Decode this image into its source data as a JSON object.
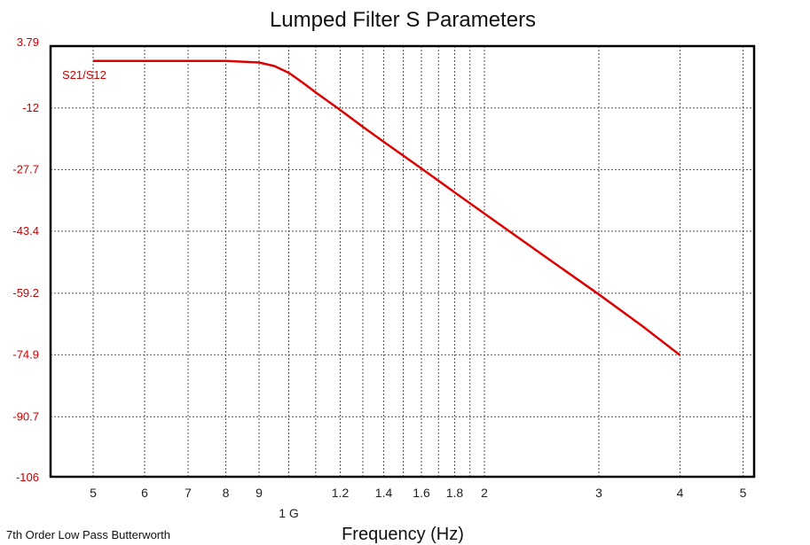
{
  "chart_data": {
    "type": "line",
    "title": "Lumped Filter S Parameters",
    "xlabel": "Frequency (Hz)",
    "ylabel": "",
    "x_scale": "log",
    "xlim": [
      430000000.0,
      5200000000.0
    ],
    "ylim": [
      -106,
      3.79
    ],
    "grid": true,
    "y_ticks": [
      {
        "value": 3.79,
        "label": "3.79"
      },
      {
        "value": -12,
        "label": "-12"
      },
      {
        "value": -27.7,
        "label": "-27.7"
      },
      {
        "value": -43.4,
        "label": "-43.4"
      },
      {
        "value": -59.2,
        "label": "-59.2"
      },
      {
        "value": -74.9,
        "label": "-74.9"
      },
      {
        "value": -90.7,
        "label": "-90.7"
      },
      {
        "value": -106,
        "label": "-106"
      }
    ],
    "x_ticks": [
      {
        "value": 500000000.0,
        "label": "5"
      },
      {
        "value": 600000000.0,
        "label": "6"
      },
      {
        "value": 700000000.0,
        "label": "7"
      },
      {
        "value": 800000000.0,
        "label": "8"
      },
      {
        "value": 900000000.0,
        "label": "9"
      },
      {
        "value": 1200000000.0,
        "label": "1.2"
      },
      {
        "value": 1400000000.0,
        "label": "1.4"
      },
      {
        "value": 1600000000.0,
        "label": "1.6"
      },
      {
        "value": 1800000000.0,
        "label": "1.8"
      },
      {
        "value": 2000000000.0,
        "label": "2"
      },
      {
        "value": 3000000000.0,
        "label": "3"
      },
      {
        "value": 4000000000.0,
        "label": "4"
      },
      {
        "value": 5000000000.0,
        "label": "5"
      }
    ],
    "decade_labels": [
      {
        "value": 1000000000.0,
        "label": "1 G"
      }
    ],
    "series": [
      {
        "name": "S21/S12",
        "color": "#dd0000",
        "x": [
          500000000.0,
          600000000.0,
          700000000.0,
          800000000.0,
          900000000.0,
          950000000.0,
          1000000000.0,
          1050000000.0,
          1100000000.0,
          1200000000.0,
          1300000000.0,
          1400000000.0,
          1600000000.0,
          1800000000.0,
          2000000000.0,
          2500000000.0,
          3000000000.0,
          3500000000.0,
          4000000000.0
        ],
        "y": [
          0,
          0,
          0,
          0,
          -0.4,
          -1.3,
          -3.0,
          -5.5,
          -8.0,
          -12.5,
          -16.8,
          -20.6,
          -27.4,
          -33.5,
          -38.9,
          -50.3,
          -59.5,
          -67.6,
          -75.0
        ]
      }
    ],
    "annotations": [
      {
        "text": "7th Order Low Pass Butterworth",
        "position": "bottom-left"
      }
    ]
  }
}
